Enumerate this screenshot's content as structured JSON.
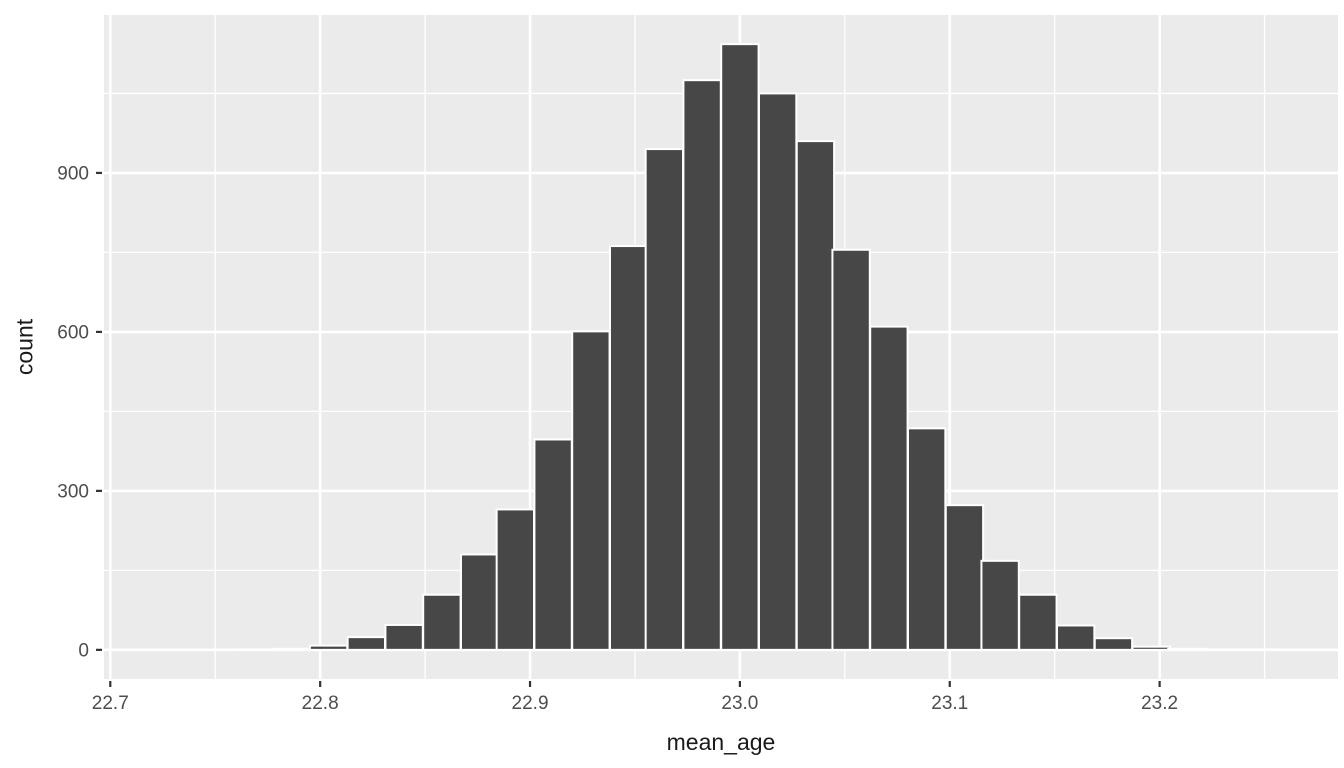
{
  "chart_data": {
    "type": "bar",
    "subtype": "histogram",
    "title": "",
    "xlabel": "mean_age",
    "ylabel": "count",
    "x_ticks": [
      22.7,
      22.8,
      22.9,
      23.0,
      23.1,
      23.2
    ],
    "x_tick_labels": [
      "22.7",
      "22.8",
      "22.9",
      "23.0",
      "23.1",
      "23.2"
    ],
    "x_minor_ticks": [
      22.75,
      22.85,
      22.95,
      23.05,
      23.15,
      23.25
    ],
    "y_ticks": [
      0,
      300,
      600,
      900
    ],
    "y_tick_labels": [
      "0",
      "300",
      "600",
      "900"
    ],
    "y_minor_ticks": [
      150,
      450,
      750,
      1050
    ],
    "xlim": [
      22.697,
      23.285
    ],
    "ylim": [
      -55,
      1198
    ],
    "binwidth": 0.0178,
    "grid": "on",
    "legend": "none",
    "bars": {
      "centers": [
        22.769,
        22.787,
        22.804,
        22.822,
        22.84,
        22.858,
        22.876,
        22.893,
        22.911,
        22.929,
        22.947,
        22.964,
        22.982,
        23.0,
        23.018,
        23.036,
        23.053,
        23.071,
        23.089,
        23.107,
        23.124,
        23.142,
        23.16,
        23.178,
        23.196,
        23.213,
        23.231,
        23.249
      ],
      "counts": [
        1,
        2,
        8,
        24,
        47,
        104,
        180,
        265,
        397,
        601,
        762,
        945,
        1075,
        1143,
        1050,
        960,
        755,
        610,
        418,
        273,
        168,
        104,
        46,
        22,
        6,
        2,
        1,
        1
      ]
    },
    "colors": {
      "page_background": "#FFFFFF",
      "panel_background": "#EBEBEB",
      "grid": "#FFFFFF",
      "bar_fill": "#474747",
      "bar_stroke": "#FFFFFF",
      "tick_mark": "#333333",
      "tick_label": "#4D4D4D",
      "axis_title": "#1A1A1A"
    }
  }
}
